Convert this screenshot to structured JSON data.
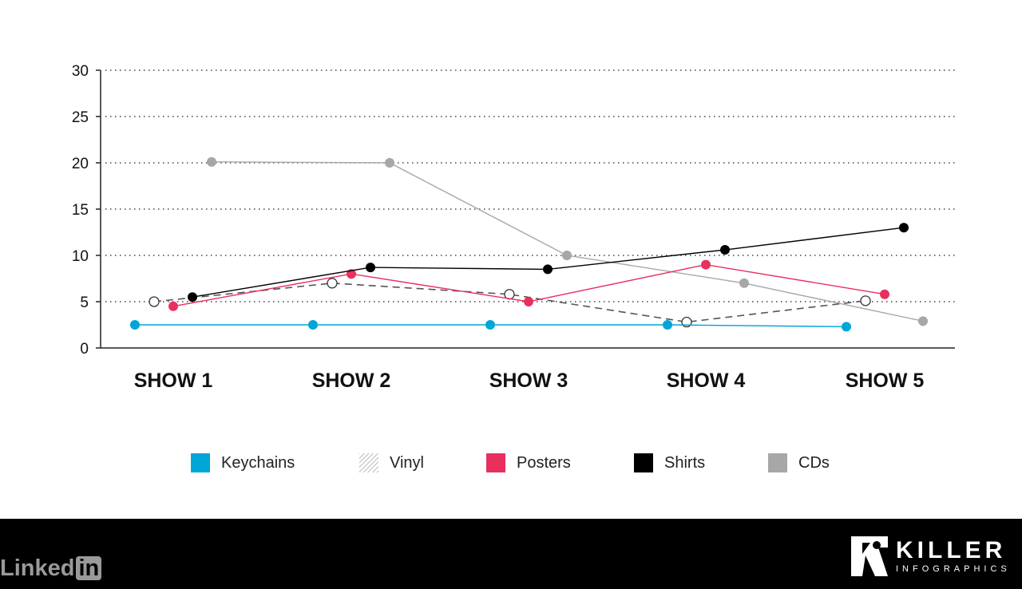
{
  "chart_data": {
    "type": "line",
    "categories": [
      "SHOW 1",
      "SHOW 2",
      "SHOW 3",
      "SHOW 4",
      "SHOW 5"
    ],
    "ylim": [
      0,
      30
    ],
    "yticks": [
      0,
      5,
      10,
      15,
      20,
      25,
      30
    ],
    "grid": "horizontal dotted",
    "legend_position": "bottom",
    "series": [
      {
        "name": "Keychains",
        "color": "#00a6d6",
        "style": "solid",
        "values": [
          2.5,
          2.5,
          2.5,
          2.5,
          2.3
        ]
      },
      {
        "name": "Vinyl",
        "color": "#555555",
        "style": "dashed",
        "values": [
          5.0,
          7.0,
          5.8,
          2.8,
          5.1
        ]
      },
      {
        "name": "Posters",
        "color": "#e8305f",
        "style": "solid",
        "values": [
          4.5,
          8.0,
          5.0,
          9.0,
          5.8
        ]
      },
      {
        "name": "Shirts",
        "color": "#000000",
        "style": "solid",
        "values": [
          5.5,
          8.7,
          8.5,
          10.6,
          13.0
        ]
      },
      {
        "name": "CDs",
        "color": "#a7a7a9",
        "style": "solid",
        "values": [
          20.1,
          20.0,
          10.0,
          7.0,
          2.9
        ]
      }
    ]
  },
  "legend": {
    "items": [
      {
        "label": "Keychains",
        "swatch": "#00a6d6"
      },
      {
        "label": "Vinyl",
        "swatch": "hatched"
      },
      {
        "label": "Posters",
        "swatch": "#e8305f"
      },
      {
        "label": "Shirts",
        "swatch": "#000000"
      },
      {
        "label": "CDs",
        "swatch": "#a7a7a9"
      }
    ]
  },
  "footer": {
    "linkedin_text": "Linked",
    "linkedin_box": "in",
    "brand_name": "KILLER",
    "brand_sub": "INFOGRAPHICS"
  }
}
